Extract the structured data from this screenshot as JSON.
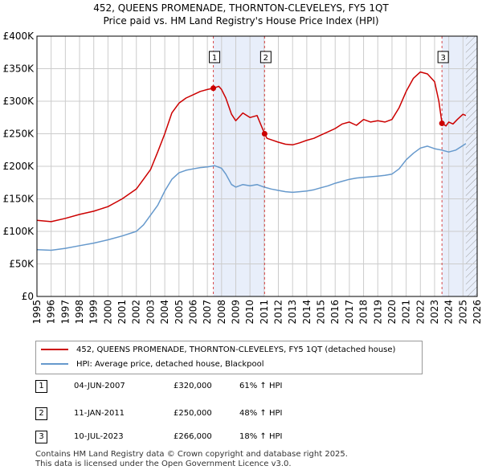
{
  "title_line1": "452, QUEENS PROMENADE, THORNTON-CLEVELEYS, FY5 1QT",
  "title_line2": "Price paid vs. HM Land Registry's House Price Index (HPI)",
  "colors": {
    "property": "#cc0000",
    "hpi": "#6699cc",
    "shade": "#e8eefa",
    "grid": "#cccccc",
    "marker": "#cc0000",
    "vline": "#cc0000"
  },
  "chart_data": {
    "type": "line",
    "xlim": [
      1995,
      2026
    ],
    "ylim": [
      0,
      400000
    ],
    "y_ticks": [
      0,
      50000,
      100000,
      150000,
      200000,
      250000,
      300000,
      350000,
      400000
    ],
    "y_tick_labels": [
      "£0",
      "£50K",
      "£100K",
      "£150K",
      "£200K",
      "£250K",
      "£300K",
      "£350K",
      "£400K"
    ],
    "x_ticks": [
      1995,
      1996,
      1997,
      1998,
      1999,
      2000,
      2001,
      2002,
      2003,
      2004,
      2005,
      2006,
      2007,
      2008,
      2009,
      2010,
      2011,
      2012,
      2013,
      2014,
      2015,
      2016,
      2017,
      2018,
      2019,
      2020,
      2021,
      2022,
      2023,
      2024,
      2025,
      2026
    ],
    "shaded_ranges": [
      [
        2007.42,
        2011.03
      ],
      [
        2023.52,
        2026
      ]
    ],
    "hatched_range": [
      2025.2,
      2026
    ],
    "series": [
      {
        "name": "452, QUEENS PROMENADE, THORNTON-CLEVELEYS, FY5 1QT (detached house)",
        "x": [
          1995,
          1996,
          1997,
          1998,
          1999,
          2000,
          2001,
          2002,
          2002.5,
          2003,
          2003.5,
          2004,
          2004.5,
          2005,
          2005.5,
          2006,
          2006.5,
          2007,
          2007.42,
          2007.8,
          2008,
          2008.3,
          2008.7,
          2009,
          2009.5,
          2010,
          2010.5,
          2011.03,
          2011.2,
          2011.6,
          2012,
          2012.5,
          2013,
          2013.5,
          2014,
          2014.5,
          2015,
          2015.5,
          2016,
          2016.5,
          2017,
          2017.5,
          2018,
          2018.5,
          2019,
          2019.5,
          2020,
          2020.5,
          2021,
          2021.5,
          2022,
          2022.5,
          2023,
          2023.3,
          2023.52,
          2023.8,
          2024,
          2024.3,
          2024.6,
          2025,
          2025.2
        ],
        "values": [
          117000,
          115000,
          120000,
          126000,
          131000,
          138000,
          150000,
          165000,
          180000,
          195000,
          222000,
          250000,
          282000,
          297000,
          305000,
          310000,
          315000,
          318000,
          320000,
          323000,
          318000,
          305000,
          280000,
          270000,
          282000,
          275000,
          278000,
          250000,
          243000,
          240000,
          237000,
          234000,
          233000,
          236000,
          240000,
          243000,
          248000,
          253000,
          258000,
          265000,
          268000,
          263000,
          272000,
          268000,
          270000,
          268000,
          272000,
          290000,
          315000,
          335000,
          345000,
          342000,
          330000,
          300000,
          266000,
          262000,
          268000,
          265000,
          272000,
          280000,
          278000
        ]
      },
      {
        "name": "HPI: Average price, detached house, Blackpool",
        "x": [
          1995,
          1996,
          1997,
          1998,
          1999,
          2000,
          2001,
          2002,
          2002.5,
          2003,
          2003.5,
          2004,
          2004.5,
          2005,
          2005.5,
          2006,
          2006.5,
          2007,
          2007.5,
          2008,
          2008.3,
          2008.7,
          2009,
          2009.5,
          2010,
          2010.5,
          2011,
          2011.5,
          2012,
          2012.5,
          2013,
          2013.5,
          2014,
          2014.5,
          2015,
          2015.5,
          2016,
          2016.5,
          2017,
          2017.5,
          2018,
          2018.5,
          2019,
          2019.5,
          2020,
          2020.5,
          2021,
          2021.5,
          2022,
          2022.5,
          2023,
          2023.5,
          2024,
          2024.5,
          2025,
          2025.2
        ],
        "values": [
          72000,
          71000,
          74000,
          78000,
          82000,
          87000,
          93000,
          100000,
          110000,
          125000,
          140000,
          162000,
          180000,
          190000,
          194000,
          196000,
          198000,
          199000,
          201000,
          197000,
          188000,
          172000,
          168000,
          172000,
          170000,
          172000,
          168000,
          165000,
          163000,
          161000,
          160000,
          161000,
          162000,
          164000,
          167000,
          170000,
          174000,
          177000,
          180000,
          182000,
          183000,
          184000,
          185000,
          186000,
          188000,
          196000,
          210000,
          220000,
          228000,
          231000,
          227000,
          225000,
          222000,
          225000,
          232000,
          235000
        ]
      }
    ],
    "markers": [
      {
        "label": "1",
        "x": 2007.42,
        "y": 320000
      },
      {
        "label": "2",
        "x": 2011.03,
        "y": 250000
      },
      {
        "label": "3",
        "x": 2023.52,
        "y": 266000
      }
    ]
  },
  "legend": [
    {
      "label": "452, QUEENS PROMENADE, THORNTON-CLEVELEYS, FY5 1QT (detached house)"
    },
    {
      "label": "HPI: Average price, detached house, Blackpool"
    }
  ],
  "sales": [
    {
      "num": "1",
      "date": "04-JUN-2007",
      "price": "£320,000",
      "hpi": "61% ↑ HPI"
    },
    {
      "num": "2",
      "date": "11-JAN-2011",
      "price": "£250,000",
      "hpi": "48% ↑ HPI"
    },
    {
      "num": "3",
      "date": "10-JUL-2023",
      "price": "£266,000",
      "hpi": "18% ↑ HPI"
    }
  ],
  "footer_line1": "Contains HM Land Registry data © Crown copyright and database right 2025.",
  "footer_line2": "This data is licensed under the Open Government Licence v3.0."
}
